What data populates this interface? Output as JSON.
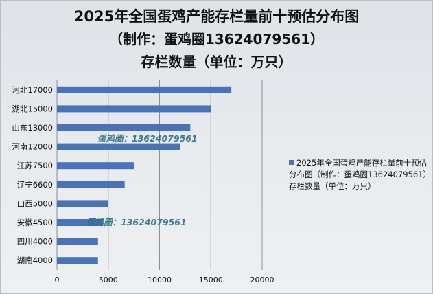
{
  "chart_data": {
    "type": "bar",
    "orientation": "horizontal",
    "title": "2025年全国蛋鸡产能存栏量前十预估分布图",
    "subtitle": "（制作：蛋鸡圈13624079561）",
    "unit_label": "存栏数量（单位：万只）",
    "categories": [
      "河北17000",
      "湖北15000",
      "山东13000",
      "河南12000",
      "江苏7500",
      "辽宁6600",
      "山西5000",
      "安徽4500",
      "四川4000",
      "湖南4000"
    ],
    "series": [
      {
        "name": "2025年全国蛋鸡产能存栏量前十预估分布图（制作：蛋鸡圈13624079561）存栏数量（单位：万只）",
        "values": [
          17000,
          15000,
          13000,
          12000,
          7500,
          6600,
          5000,
          4500,
          4000,
          4000
        ]
      }
    ],
    "xlim": [
      0,
      20000
    ],
    "xticks": [
      "0",
      "5000",
      "10000",
      "15000",
      "20000"
    ],
    "grid": true,
    "legend_position": "right"
  },
  "watermarks": [
    "蛋鸡圈：13624079561",
    "蛋鸡圈：13624079561"
  ],
  "colors": {
    "bar": "#4a72b6",
    "gridline": "#8c9096"
  }
}
